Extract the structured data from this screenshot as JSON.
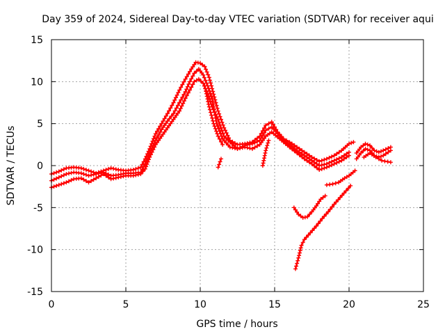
{
  "chart_data": {
    "type": "scatter",
    "title": "Day 359 of 2024, Sidereal Day-to-day VTEC variation (SDTVAR) for receiver aqui",
    "xlabel": "GPS time / hours",
    "ylabel": "SDTVAR / TECUs",
    "xlim": [
      0,
      25
    ],
    "ylim": [
      -15,
      15
    ],
    "xticks": [
      "0",
      "5",
      "10",
      "15",
      "20",
      "25"
    ],
    "yticks": [
      "15",
      "10",
      "5",
      "0",
      "-5",
      "-10",
      "-15"
    ],
    "grid": true,
    "marker": "+",
    "color": "#ff0000",
    "series": [
      {
        "name": "track-1",
        "x": [
          0,
          0.5,
          1.0,
          1.5,
          2.0,
          2.5,
          3.0,
          3.5,
          4.0,
          4.5,
          5.0,
          5.5,
          6.0,
          6.3,
          6.6,
          7.0,
          7.4,
          7.8,
          8.2,
          8.6,
          9.0,
          9.4,
          9.7,
          10.0,
          10.3,
          10.6,
          10.9,
          11.2,
          11.6,
          12.0,
          12.5,
          13.0,
          13.5,
          14.0,
          14.4,
          14.8,
          15.2,
          15.6,
          16.0,
          16.5,
          17.0,
          17.5,
          18.0,
          18.5,
          19.0,
          19.5,
          20.0,
          20.3
        ],
        "y": [
          -1.0,
          -0.7,
          -0.3,
          -0.2,
          -0.3,
          -0.6,
          -0.9,
          -0.6,
          -0.3,
          -0.5,
          -0.6,
          -0.5,
          -0.2,
          0.8,
          2.0,
          3.8,
          5.0,
          6.2,
          7.5,
          9.0,
          10.3,
          11.5,
          12.3,
          12.2,
          11.8,
          10.5,
          8.5,
          6.5,
          4.5,
          3.0,
          2.5,
          2.6,
          2.8,
          3.5,
          4.8,
          5.2,
          4.0,
          3.2,
          2.8,
          2.2,
          1.6,
          1.0,
          0.5,
          0.8,
          1.2,
          1.8,
          2.6,
          2.8
        ]
      },
      {
        "name": "track-2",
        "x": [
          0,
          0.5,
          1.0,
          1.5,
          2.0,
          2.5,
          3.0,
          3.5,
          4.0,
          4.5,
          5.0,
          5.5,
          6.0,
          6.3,
          6.6,
          7.0,
          7.4,
          7.8,
          8.2,
          8.6,
          9.0,
          9.3,
          9.6,
          9.9,
          10.2,
          10.5,
          10.8,
          11.1,
          11.5,
          12.0,
          12.5,
          13.0,
          13.5,
          14.0,
          14.4,
          14.8,
          15.2,
          15.6,
          16.0,
          16.5,
          17.0,
          17.5,
          18.0,
          18.5,
          19.0,
          19.5,
          20.0
        ],
        "y": [
          -1.8,
          -1.4,
          -1.0,
          -0.8,
          -0.9,
          -1.2,
          -1.0,
          -0.8,
          -1.2,
          -1.1,
          -0.9,
          -0.9,
          -0.8,
          0.2,
          1.5,
          3.0,
          4.3,
          5.3,
          6.2,
          7.5,
          8.8,
          10.0,
          11.0,
          11.5,
          10.8,
          9.5,
          8.0,
          5.0,
          3.2,
          2.2,
          2.0,
          2.4,
          2.6,
          3.0,
          4.2,
          4.6,
          3.8,
          3.0,
          2.5,
          1.8,
          1.2,
          0.6,
          0.0,
          0.2,
          0.6,
          1.0,
          1.6
        ]
      },
      {
        "name": "track-3",
        "x": [
          0,
          0.5,
          1.0,
          1.5,
          2.0,
          2.5,
          3.0,
          3.5,
          4.0,
          4.5,
          5.0,
          5.5,
          6.0,
          6.3,
          6.6,
          7.0,
          7.4,
          7.8,
          8.2,
          8.6,
          9.0,
          9.3,
          9.6,
          9.9,
          10.2,
          10.5,
          10.8,
          11.2,
          11.6,
          12.0,
          12.5,
          13.0,
          13.5,
          14.0,
          14.4,
          14.8,
          15.2,
          15.6,
          16.0,
          16.5,
          17.0,
          17.5,
          18.0,
          18.5,
          19.0,
          19.5,
          20.0
        ],
        "y": [
          -2.6,
          -2.3,
          -2.0,
          -1.6,
          -1.5,
          -2.0,
          -1.5,
          -1.0,
          -1.6,
          -1.4,
          -1.2,
          -1.2,
          -1.0,
          -0.4,
          1.0,
          2.5,
          3.5,
          4.5,
          5.5,
          6.5,
          8.0,
          9.0,
          10.0,
          10.3,
          9.8,
          8.5,
          7.0,
          5.5,
          3.5,
          2.8,
          2.0,
          2.2,
          2.0,
          2.5,
          3.5,
          4.0,
          3.4,
          2.8,
          2.2,
          1.5,
          0.8,
          0.2,
          -0.5,
          -0.2,
          0.2,
          0.6,
          1.2
        ]
      },
      {
        "name": "track-4",
        "x": [
          20.5,
          20.8,
          21.1,
          21.4,
          21.7,
          22.0,
          22.3,
          22.8
        ],
        "y": [
          1.5,
          2.2,
          2.6,
          2.4,
          1.8,
          1.6,
          1.8,
          2.2
        ]
      },
      {
        "name": "track-5",
        "x": [
          20.5,
          20.8,
          21.1,
          21.4,
          21.7,
          22.0,
          22.3,
          22.8
        ],
        "y": [
          0.8,
          1.5,
          2.0,
          1.8,
          1.2,
          1.0,
          1.2,
          1.8
        ]
      },
      {
        "name": "track-6",
        "x": [
          21.0,
          21.4,
          21.8,
          22.2,
          22.8
        ],
        "y": [
          1.0,
          1.5,
          1.0,
          0.6,
          0.4
        ]
      },
      {
        "name": "track-7",
        "x": [
          10.3,
          10.6,
          10.9,
          11.2,
          11.5
        ],
        "y": [
          9.5,
          7.0,
          5.0,
          3.5,
          2.5
        ]
      },
      {
        "name": "track-8",
        "x": [
          11.2,
          11.4
        ],
        "y": [
          -0.2,
          0.8
        ]
      },
      {
        "name": "track-9",
        "x": [
          14.2,
          14.4,
          14.6
        ],
        "y": [
          0.0,
          1.8,
          3.0
        ]
      },
      {
        "name": "track-10",
        "x": [
          16.3,
          16.6,
          16.9,
          17.2,
          17.5,
          17.8,
          18.1,
          18.4
        ],
        "y": [
          -5.0,
          -5.8,
          -6.2,
          -6.1,
          -5.5,
          -4.8,
          -4.0,
          -3.6
        ]
      },
      {
        "name": "track-11",
        "x": [
          18.5,
          18.9,
          19.3,
          19.7,
          20.0,
          20.4
        ],
        "y": [
          -2.3,
          -2.2,
          -2.0,
          -1.5,
          -1.2,
          -0.6
        ]
      },
      {
        "name": "track-12",
        "x": [
          16.4,
          16.6,
          16.8,
          17.0,
          17.4,
          17.8,
          18.2,
          18.6,
          19.0,
          19.4,
          19.8,
          20.1
        ],
        "y": [
          -12.3,
          -11.0,
          -9.5,
          -8.8,
          -8.0,
          -7.2,
          -6.3,
          -5.5,
          -4.6,
          -3.8,
          -3.0,
          -2.4
        ]
      }
    ]
  }
}
